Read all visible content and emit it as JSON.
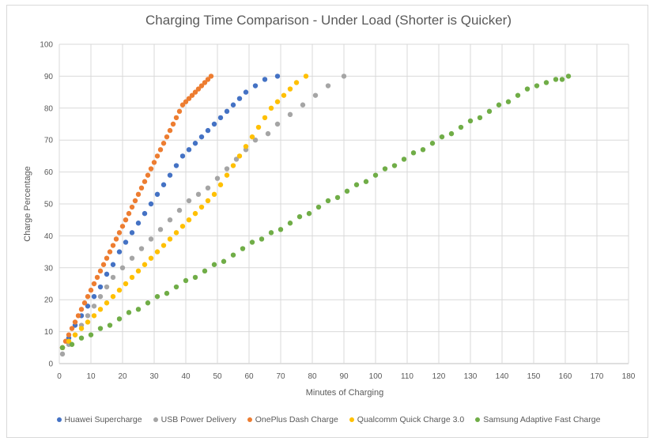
{
  "chart_data": {
    "type": "scatter",
    "title": "Charging Time Comparison - Under Load (Shorter is Quicker)",
    "xlabel": "Minutes of Charging",
    "ylabel": "Charge Percentage",
    "xlim": [
      0,
      180
    ],
    "ylim": [
      0,
      100
    ],
    "xticks": [
      "0",
      "10",
      "20",
      "30",
      "40",
      "50",
      "60",
      "70",
      "80",
      "90",
      "100",
      "110",
      "120",
      "130",
      "140",
      "150",
      "160",
      "170",
      "180"
    ],
    "yticks": [
      "0",
      "10",
      "20",
      "30",
      "40",
      "50",
      "60",
      "70",
      "80",
      "90",
      "100"
    ],
    "grid": true,
    "legend_position": "bottom",
    "series": [
      {
        "name": "Huawei Supercharge",
        "color": "#4472c4",
        "points": [
          [
            1,
            5
          ],
          [
            3,
            8
          ],
          [
            5,
            12
          ],
          [
            7,
            15
          ],
          [
            9,
            18
          ],
          [
            11,
            21
          ],
          [
            13,
            24
          ],
          [
            15,
            28
          ],
          [
            17,
            31
          ],
          [
            19,
            35
          ],
          [
            21,
            38
          ],
          [
            23,
            41
          ],
          [
            25,
            44
          ],
          [
            27,
            47
          ],
          [
            29,
            50
          ],
          [
            31,
            53
          ],
          [
            33,
            56
          ],
          [
            35,
            59
          ],
          [
            37,
            62
          ],
          [
            39,
            65
          ],
          [
            41,
            67
          ],
          [
            43,
            69
          ],
          [
            45,
            71
          ],
          [
            47,
            73
          ],
          [
            49,
            75
          ],
          [
            51,
            77
          ],
          [
            53,
            79
          ],
          [
            55,
            81
          ],
          [
            57,
            83
          ],
          [
            59,
            85
          ],
          [
            62,
            87
          ],
          [
            65,
            89
          ],
          [
            69,
            90
          ]
        ]
      },
      {
        "name": "USB Power Delivery",
        "color": "#a5a5a5",
        "points": [
          [
            1,
            3
          ],
          [
            3,
            6
          ],
          [
            5,
            9
          ],
          [
            7,
            12
          ],
          [
            9,
            15
          ],
          [
            11,
            18
          ],
          [
            13,
            21
          ],
          [
            15,
            24
          ],
          [
            17,
            27
          ],
          [
            20,
            30
          ],
          [
            23,
            33
          ],
          [
            26,
            36
          ],
          [
            29,
            39
          ],
          [
            32,
            42
          ],
          [
            35,
            45
          ],
          [
            38,
            48
          ],
          [
            41,
            51
          ],
          [
            44,
            53
          ],
          [
            47,
            55
          ],
          [
            50,
            58
          ],
          [
            53,
            61
          ],
          [
            56,
            64
          ],
          [
            59,
            67
          ],
          [
            62,
            70
          ],
          [
            66,
            72
          ],
          [
            69,
            75
          ],
          [
            73,
            78
          ],
          [
            77,
            81
          ],
          [
            81,
            84
          ],
          [
            85,
            87
          ],
          [
            90,
            90
          ]
        ]
      },
      {
        "name": "OnePlus Dash Charge",
        "color": "#ed7d31",
        "points": [
          [
            1,
            5
          ],
          [
            2,
            7
          ],
          [
            3,
            9
          ],
          [
            4,
            11
          ],
          [
            5,
            13
          ],
          [
            6,
            15
          ],
          [
            7,
            17
          ],
          [
            8,
            19
          ],
          [
            9,
            21
          ],
          [
            10,
            23
          ],
          [
            11,
            25
          ],
          [
            12,
            27
          ],
          [
            13,
            29
          ],
          [
            14,
            31
          ],
          [
            15,
            33
          ],
          [
            16,
            35
          ],
          [
            17,
            37
          ],
          [
            18,
            39
          ],
          [
            19,
            41
          ],
          [
            20,
            43
          ],
          [
            21,
            45
          ],
          [
            22,
            47
          ],
          [
            23,
            49
          ],
          [
            24,
            51
          ],
          [
            25,
            53
          ],
          [
            26,
            55
          ],
          [
            27,
            57
          ],
          [
            28,
            59
          ],
          [
            29,
            61
          ],
          [
            30,
            63
          ],
          [
            31,
            65
          ],
          [
            32,
            67
          ],
          [
            33,
            69
          ],
          [
            34,
            71
          ],
          [
            35,
            73
          ],
          [
            36,
            75
          ],
          [
            37,
            77
          ],
          [
            38,
            79
          ],
          [
            39,
            81
          ],
          [
            40,
            82
          ],
          [
            41,
            83
          ],
          [
            42,
            84
          ],
          [
            43,
            85
          ],
          [
            44,
            86
          ],
          [
            45,
            87
          ],
          [
            46,
            88
          ],
          [
            47,
            89
          ],
          [
            48,
            90
          ]
        ]
      },
      {
        "name": "Qualcomm Quick Charge 3.0",
        "color": "#ffc000",
        "points": [
          [
            1,
            5
          ],
          [
            3,
            7
          ],
          [
            5,
            9
          ],
          [
            7,
            11
          ],
          [
            9,
            13
          ],
          [
            11,
            15
          ],
          [
            13,
            17
          ],
          [
            15,
            19
          ],
          [
            17,
            21
          ],
          [
            19,
            23
          ],
          [
            21,
            25
          ],
          [
            23,
            27
          ],
          [
            25,
            29
          ],
          [
            27,
            31
          ],
          [
            29,
            33
          ],
          [
            31,
            35
          ],
          [
            33,
            37
          ],
          [
            35,
            39
          ],
          [
            37,
            41
          ],
          [
            39,
            43
          ],
          [
            41,
            45
          ],
          [
            43,
            47
          ],
          [
            45,
            49
          ],
          [
            47,
            51
          ],
          [
            49,
            53
          ],
          [
            51,
            56
          ],
          [
            53,
            59
          ],
          [
            55,
            62
          ],
          [
            57,
            65
          ],
          [
            59,
            68
          ],
          [
            61,
            71
          ],
          [
            63,
            74
          ],
          [
            65,
            77
          ],
          [
            67,
            80
          ],
          [
            69,
            82
          ],
          [
            71,
            84
          ],
          [
            73,
            86
          ],
          [
            75,
            88
          ],
          [
            78,
            90
          ]
        ]
      },
      {
        "name": "Samsung Adaptive Fast Charge",
        "color": "#70ad47",
        "points": [
          [
            1,
            5
          ],
          [
            4,
            6
          ],
          [
            7,
            8
          ],
          [
            10,
            9
          ],
          [
            13,
            11
          ],
          [
            16,
            12
          ],
          [
            19,
            14
          ],
          [
            22,
            16
          ],
          [
            25,
            17
          ],
          [
            28,
            19
          ],
          [
            31,
            21
          ],
          [
            34,
            22
          ],
          [
            37,
            24
          ],
          [
            40,
            26
          ],
          [
            43,
            27
          ],
          [
            46,
            29
          ],
          [
            49,
            31
          ],
          [
            52,
            32
          ],
          [
            55,
            34
          ],
          [
            58,
            36
          ],
          [
            61,
            38
          ],
          [
            64,
            39
          ],
          [
            67,
            41
          ],
          [
            70,
            42
          ],
          [
            73,
            44
          ],
          [
            76,
            46
          ],
          [
            79,
            47
          ],
          [
            82,
            49
          ],
          [
            85,
            51
          ],
          [
            88,
            52
          ],
          [
            91,
            54
          ],
          [
            94,
            56
          ],
          [
            97,
            57
          ],
          [
            100,
            59
          ],
          [
            103,
            61
          ],
          [
            106,
            62
          ],
          [
            109,
            64
          ],
          [
            112,
            66
          ],
          [
            115,
            67
          ],
          [
            118,
            69
          ],
          [
            121,
            71
          ],
          [
            124,
            72
          ],
          [
            127,
            74
          ],
          [
            130,
            76
          ],
          [
            133,
            77
          ],
          [
            136,
            79
          ],
          [
            139,
            81
          ],
          [
            142,
            82
          ],
          [
            145,
            84
          ],
          [
            148,
            86
          ],
          [
            151,
            87
          ],
          [
            154,
            88
          ],
          [
            157,
            89
          ],
          [
            159,
            89
          ],
          [
            161,
            90
          ]
        ]
      }
    ]
  }
}
